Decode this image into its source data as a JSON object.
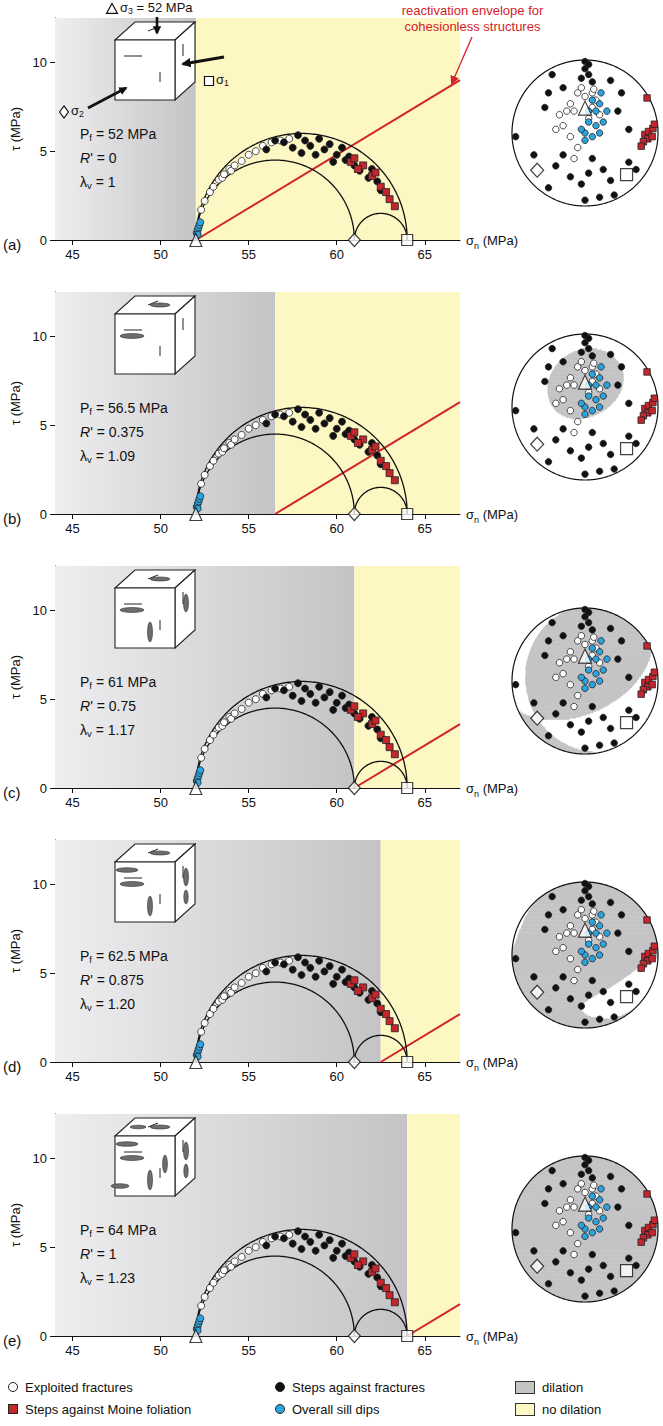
{
  "chart_data": {
    "type": "mohr_stereonet",
    "x_label": "σn (MPa)",
    "y_label": "τ (MPa)",
    "xlim": [
      44,
      67
    ],
    "xticks": [
      45,
      50,
      55,
      60,
      65
    ],
    "ylim": [
      0,
      12.5
    ],
    "yticks": [
      0,
      5,
      10
    ],
    "grid": false,
    "stereonet": {
      "xlim": [
        -1,
        1
      ],
      "ylim": [
        -1,
        1
      ],
      "tick_labels": false
    },
    "principal_stresses": [
      {
        "name": "σ1",
        "value": 64,
        "trend": 135,
        "plunge": 20.6,
        "marker": "square"
      },
      {
        "name": "σ2",
        "value": 61,
        "trend": 232.1,
        "plunge": 18.1,
        "marker": "diamond"
      },
      {
        "name": "σ3",
        "value": 52,
        "trend": 0,
        "plunge": 62,
        "marker": "triangle"
      }
    ],
    "sigma3_label": "σ3 = 52 MPa",
    "envelope": {
      "label": "reactivation envelope for cohesionless structures",
      "friction_coefficient": 0.6,
      "color": "#d2232a"
    },
    "regions": {
      "dilation": {
        "label": "dilation",
        "color": "#c4c4c7"
      },
      "no_dilation": {
        "label": "no dilation",
        "color": "#fdf7c3"
      }
    },
    "series": [
      {
        "name": "Exploited fractures",
        "marker": "circle",
        "color": "#ffffff",
        "mohr": [
          [
            52.3,
            1.7
          ],
          [
            52.5,
            2.2
          ],
          [
            52.8,
            2.7
          ],
          [
            53.0,
            3.0
          ],
          [
            53.3,
            3.4
          ],
          [
            53.5,
            3.5
          ],
          [
            53.6,
            3.7
          ],
          [
            53.9,
            4.0
          ],
          [
            54.0,
            3.9
          ],
          [
            54.2,
            4.2
          ],
          [
            54.6,
            4.45
          ],
          [
            55.0,
            4.8
          ],
          [
            55.4,
            5.0
          ],
          [
            55.8,
            5.3
          ],
          [
            56.3,
            5.5
          ],
          [
            56.8,
            5.6
          ],
          [
            57.3,
            5.7
          ]
        ],
        "stereonet": [
          [
            -0.1,
            0.55
          ],
          [
            0,
            0.5
          ],
          [
            0.1,
            0.55
          ],
          [
            -0.2,
            0.4
          ],
          [
            -0.25,
            0.3
          ],
          [
            -0.15,
            0.3
          ],
          [
            0.1,
            0.35
          ],
          [
            0.15,
            0.45
          ],
          [
            -0.35,
            0.25
          ],
          [
            -0.3,
            0.1
          ],
          [
            -0.4,
            0.05
          ],
          [
            -0.2,
            -0.05
          ],
          [
            0.05,
            0.2
          ],
          [
            -0.1,
            -0.2
          ],
          [
            -0.15,
            -0.35
          ],
          [
            0.2,
            0.25
          ],
          [
            0.12,
            0.6
          ],
          [
            -0.05,
            0.62
          ]
        ]
      },
      {
        "name": "Steps against fractures",
        "marker": "circle",
        "color": "#111111",
        "mohr": [
          [
            56.5,
            5.6
          ],
          [
            57.0,
            5.5
          ],
          [
            57.8,
            5.9
          ],
          [
            58.2,
            5.6
          ],
          [
            58.5,
            5.3
          ],
          [
            59.0,
            5.7
          ],
          [
            59.3,
            5.1
          ],
          [
            59.6,
            5.4
          ],
          [
            60.0,
            4.8
          ],
          [
            60.3,
            5.2
          ],
          [
            60.5,
            4.5
          ],
          [
            60.7,
            4.7
          ],
          [
            61.0,
            4.2
          ],
          [
            59.8,
            4.4
          ],
          [
            58.8,
            4.8
          ],
          [
            57.5,
            5.2
          ],
          [
            61.3,
            3.9
          ],
          [
            62.0,
            4.0
          ],
          [
            62.3,
            3.3
          ],
          [
            62.5,
            2.8
          ],
          [
            61.8,
            3.5
          ],
          [
            58.0,
            4.9
          ],
          [
            56.0,
            5.1
          ]
        ],
        "stereonet": [
          [
            0,
            0.98
          ],
          [
            0.05,
            0.94
          ],
          [
            0,
            0.88
          ],
          [
            0.05,
            0.8
          ],
          [
            -0.05,
            0.75
          ],
          [
            0.1,
            0.7
          ],
          [
            -0.45,
            0.8
          ],
          [
            -0.3,
            0.62
          ],
          [
            -0.5,
            0.55
          ],
          [
            -0.55,
            0.35
          ],
          [
            -0.95,
            -0.05
          ],
          [
            -0.7,
            -0.3
          ],
          [
            -0.3,
            -0.3
          ],
          [
            -0.4,
            -0.45
          ],
          [
            -0.2,
            -0.6
          ],
          [
            -0.05,
            -0.7
          ],
          [
            0.05,
            -0.55
          ],
          [
            0.1,
            -0.35
          ],
          [
            0.25,
            -0.5
          ],
          [
            0.35,
            -0.65
          ],
          [
            0.4,
            -0.85
          ],
          [
            0.2,
            -0.88
          ],
          [
            0.0,
            -0.92
          ],
          [
            -0.5,
            -0.75
          ],
          [
            0.6,
            -0.4
          ],
          [
            0.6,
            0.05
          ],
          [
            0.45,
            0.3
          ],
          [
            0.5,
            0.55
          ],
          [
            0.35,
            0.72
          ],
          [
            0.7,
            -0.5
          ]
        ]
      },
      {
        "name": "Steps against Moine foliation",
        "marker": "square",
        "color": "#c4262e",
        "mohr": [
          [
            60.8,
            4.4
          ],
          [
            61.0,
            4.6
          ],
          [
            61.5,
            4.2
          ],
          [
            62.0,
            3.6
          ],
          [
            62.5,
            3.0
          ],
          [
            62.8,
            2.7
          ],
          [
            63.0,
            2.3
          ],
          [
            62.2,
            3.8
          ],
          [
            61.2,
            4.0
          ],
          [
            63.3,
            1.9
          ]
        ],
        "stereonet": [
          [
            0.85,
            0.48
          ],
          [
            0.82,
            -0.02
          ],
          [
            0.87,
            0.02
          ],
          [
            0.93,
            0.06
          ],
          [
            0.86,
            -0.08
          ],
          [
            0.8,
            -0.12
          ],
          [
            0.92,
            -0.05
          ],
          [
            0.77,
            -0.18
          ],
          [
            0.95,
            0.12
          ]
        ]
      },
      {
        "name": "Overall sill dips",
        "marker": "circle",
        "color": "#2ba3dc",
        "mohr": [
          [
            52.05,
            0.4
          ],
          [
            52.1,
            0.55
          ],
          [
            52.15,
            0.7
          ],
          [
            52.2,
            0.85
          ],
          [
            52.1,
            0.3
          ],
          [
            52.25,
            1.0
          ]
        ],
        "stereonet": [
          [
            0.05,
            0.3
          ],
          [
            0.15,
            0.3
          ],
          [
            0.2,
            0.4
          ],
          [
            0.05,
            0.15
          ],
          [
            0.15,
            0.1
          ],
          [
            0.25,
            0.15
          ],
          [
            0,
            0
          ],
          [
            0.1,
            -0.05
          ],
          [
            -0.05,
            0.05
          ],
          [
            0.2,
            0.0
          ],
          [
            0.3,
            0.3
          ],
          [
            0.0,
            -0.1
          ],
          [
            0.1,
            0.45
          ],
          [
            0.22,
            0.55
          ]
        ]
      }
    ],
    "panels": [
      {
        "label": "(a)",
        "pf": 52,
        "texts": [
          "Pf = 52 MPa",
          "R' = 0",
          "λv = 1"
        ]
      },
      {
        "label": "(b)",
        "pf": 56.5,
        "texts": [
          "Pf = 56.5 MPa",
          "R' = 0.375",
          "λv = 1.09"
        ]
      },
      {
        "label": "(c)",
        "pf": 61,
        "texts": [
          "Pf = 61 MPa",
          "R' = 0.75",
          "λv = 1.17"
        ]
      },
      {
        "label": "(d)",
        "pf": 62.5,
        "texts": [
          "Pf = 62.5 MPa",
          "R' = 0.875",
          "λv = 1.20"
        ]
      },
      {
        "label": "(e)",
        "pf": 64,
        "texts": [
          "Pf = 64 MPa",
          "R' = 1",
          "λv = 1.23"
        ]
      }
    ]
  }
}
